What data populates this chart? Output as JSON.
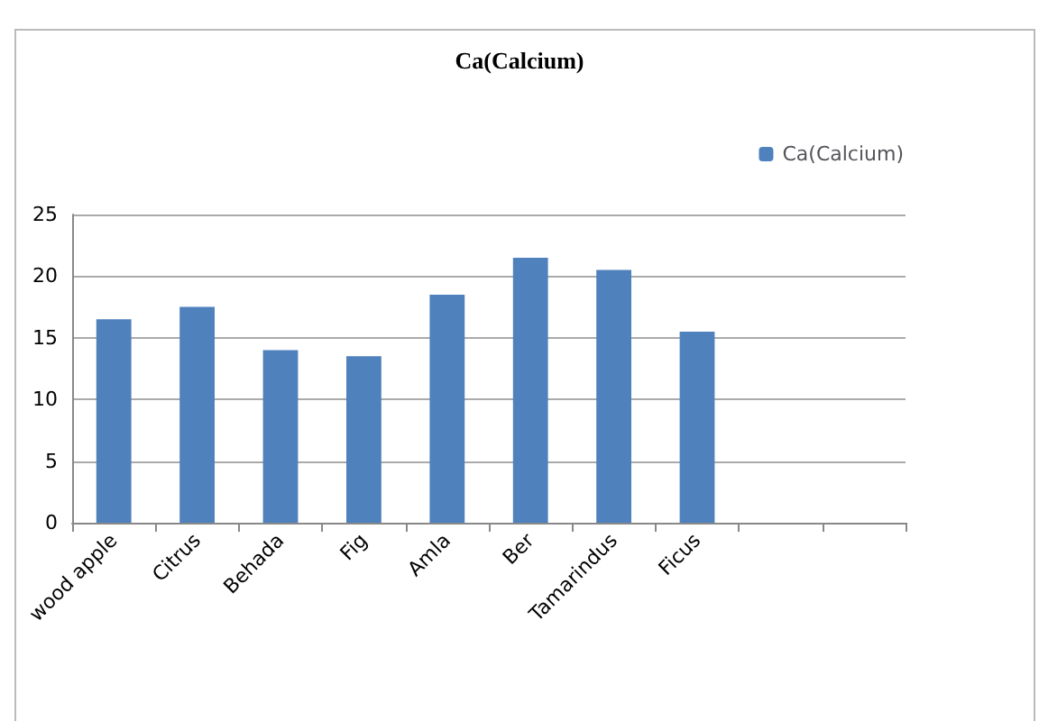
{
  "chart_data": {
    "type": "bar",
    "title": "Ca(Calcium)",
    "categories": [
      "wood apple",
      "Citrus",
      "Behada",
      "Fig",
      "Amla",
      "Ber",
      "Tamarindus",
      "Ficus",
      null,
      null
    ],
    "series": [
      {
        "name": "Ca(Calcium)",
        "color": "#4f81bd",
        "values": [
          16.5,
          17.5,
          14,
          13.5,
          18.5,
          21.5,
          20.5,
          15.5,
          null,
          null
        ]
      }
    ],
    "ylim": [
      0,
      25
    ],
    "yticks": [
      0,
      5,
      10,
      15,
      20,
      25
    ],
    "grid": "y",
    "legend": "top right"
  }
}
